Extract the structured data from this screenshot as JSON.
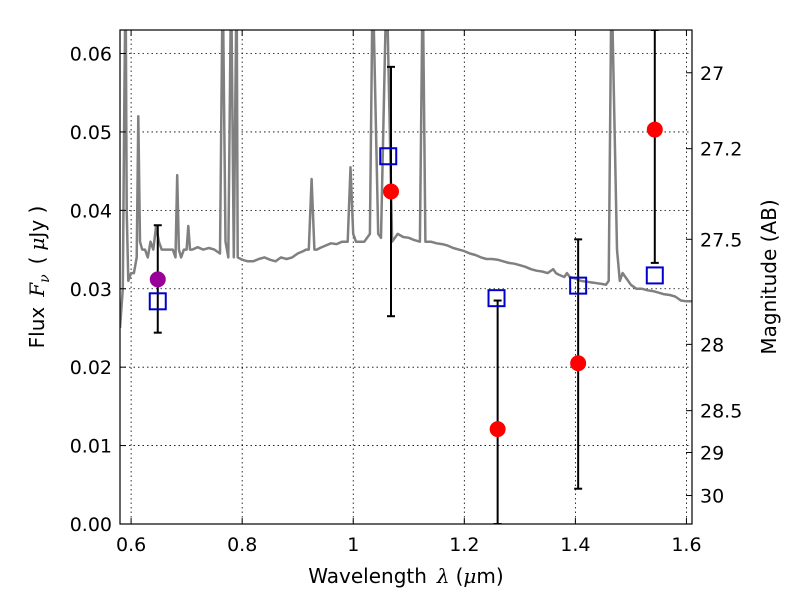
{
  "chart_data": {
    "type": "scatter",
    "xlabel_prefix": "Wavelength",
    "xlabel_symbol": "λ",
    "xlabel_unit_open": "(",
    "xlabel_unit_mu": "μ",
    "xlabel_unit_rest": "m)",
    "ylabel_prefix": "Flux",
    "ylabel_symbol": "F",
    "ylabel_sub": "ν",
    "ylabel_unit_open": "(",
    "ylabel_unit_mu": "μ",
    "ylabel_unit_rest": "Jy )",
    "y2label": "Magnitude (AB)",
    "xlim": [
      0.58,
      1.61
    ],
    "ylim": [
      0.0,
      0.063
    ],
    "grid": true,
    "x_ticks": [
      {
        "v": 0.6,
        "label": "0.6"
      },
      {
        "v": 0.8,
        "label": "0.8"
      },
      {
        "v": 1.0,
        "label": "1"
      },
      {
        "v": 1.2,
        "label": "1.2"
      },
      {
        "v": 1.4,
        "label": "1.4"
      },
      {
        "v": 1.6,
        "label": "1.6"
      }
    ],
    "y_ticks": [
      {
        "v": 0.0,
        "label": "0.00"
      },
      {
        "v": 0.01,
        "label": "0.01"
      },
      {
        "v": 0.02,
        "label": "0.02"
      },
      {
        "v": 0.03,
        "label": "0.03"
      },
      {
        "v": 0.04,
        "label": "0.04"
      },
      {
        "v": 0.05,
        "label": "0.05"
      },
      {
        "v": 0.06,
        "label": "0.06"
      }
    ],
    "mag_ticks": [
      {
        "v": 27,
        "label": "27"
      },
      {
        "v": 27.2,
        "label": "27.2"
      },
      {
        "v": 27.5,
        "label": "27.5"
      },
      {
        "v": 28,
        "label": "28"
      },
      {
        "v": 28.5,
        "label": "28.5"
      },
      {
        "v": 29,
        "label": "29"
      },
      {
        "v": 30,
        "label": "30"
      }
    ],
    "spectrum": {
      "name": "model spectrum",
      "color": "#808080",
      "points": [
        [
          0.58,
          0.025
        ],
        [
          0.585,
          0.03
        ],
        [
          0.588,
          0.055
        ],
        [
          0.59,
          0.07
        ],
        [
          0.592,
          0.04
        ],
        [
          0.595,
          0.031
        ],
        [
          0.6,
          0.032
        ],
        [
          0.605,
          0.032
        ],
        [
          0.61,
          0.034
        ],
        [
          0.613,
          0.052
        ],
        [
          0.616,
          0.036
        ],
        [
          0.62,
          0.035
        ],
        [
          0.625,
          0.035
        ],
        [
          0.63,
          0.034
        ],
        [
          0.635,
          0.036
        ],
        [
          0.64,
          0.035
        ],
        [
          0.645,
          0.038
        ],
        [
          0.65,
          0.036
        ],
        [
          0.655,
          0.035
        ],
        [
          0.66,
          0.035
        ],
        [
          0.665,
          0.035
        ],
        [
          0.67,
          0.035
        ],
        [
          0.675,
          0.035
        ],
        [
          0.68,
          0.034
        ],
        [
          0.683,
          0.0445
        ],
        [
          0.686,
          0.035
        ],
        [
          0.69,
          0.034
        ],
        [
          0.695,
          0.035
        ],
        [
          0.7,
          0.035
        ],
        [
          0.703,
          0.038
        ],
        [
          0.706,
          0.035
        ],
        [
          0.71,
          0.035
        ],
        [
          0.72,
          0.0353
        ],
        [
          0.73,
          0.035
        ],
        [
          0.74,
          0.0352
        ],
        [
          0.75,
          0.035
        ],
        [
          0.76,
          0.0345
        ],
        [
          0.765,
          0.07
        ],
        [
          0.77,
          0.036
        ],
        [
          0.775,
          0.034
        ],
        [
          0.78,
          0.07
        ],
        [
          0.785,
          0.034
        ],
        [
          0.79,
          0.07
        ],
        [
          0.792,
          0.034
        ],
        [
          0.8,
          0.0337
        ],
        [
          0.81,
          0.0335
        ],
        [
          0.82,
          0.0335
        ],
        [
          0.83,
          0.0338
        ],
        [
          0.84,
          0.034
        ],
        [
          0.85,
          0.0337
        ],
        [
          0.86,
          0.0335
        ],
        [
          0.87,
          0.034
        ],
        [
          0.88,
          0.0338
        ],
        [
          0.89,
          0.034
        ],
        [
          0.9,
          0.0345
        ],
        [
          0.91,
          0.0348
        ],
        [
          0.915,
          0.035
        ],
        [
          0.92,
          0.035
        ],
        [
          0.925,
          0.044
        ],
        [
          0.93,
          0.035
        ],
        [
          0.935,
          0.035
        ],
        [
          0.94,
          0.0352
        ],
        [
          0.95,
          0.0355
        ],
        [
          0.96,
          0.0358
        ],
        [
          0.97,
          0.0357
        ],
        [
          0.98,
          0.036
        ],
        [
          0.99,
          0.036
        ],
        [
          0.995,
          0.0455
        ],
        [
          1.0,
          0.037
        ],
        [
          1.005,
          0.036
        ],
        [
          1.01,
          0.036
        ],
        [
          1.02,
          0.036
        ],
        [
          1.03,
          0.037
        ],
        [
          1.035,
          0.07
        ],
        [
          1.045,
          0.037
        ],
        [
          1.05,
          0.0365
        ],
        [
          1.06,
          0.07
        ],
        [
          1.07,
          0.036
        ],
        [
          1.08,
          0.037
        ],
        [
          1.09,
          0.0366
        ],
        [
          1.1,
          0.0365
        ],
        [
          1.11,
          0.0362
        ],
        [
          1.12,
          0.036
        ],
        [
          1.125,
          0.07
        ],
        [
          1.13,
          0.036
        ],
        [
          1.14,
          0.036
        ],
        [
          1.15,
          0.0358
        ],
        [
          1.16,
          0.0357
        ],
        [
          1.17,
          0.0355
        ],
        [
          1.18,
          0.0352
        ],
        [
          1.19,
          0.035
        ],
        [
          1.2,
          0.0348
        ],
        [
          1.21,
          0.0345
        ],
        [
          1.22,
          0.0343
        ],
        [
          1.23,
          0.034
        ],
        [
          1.24,
          0.0338
        ],
        [
          1.25,
          0.0338
        ],
        [
          1.26,
          0.0337
        ],
        [
          1.27,
          0.0335
        ],
        [
          1.28,
          0.0333
        ],
        [
          1.29,
          0.0332
        ],
        [
          1.3,
          0.033
        ],
        [
          1.31,
          0.0328
        ],
        [
          1.32,
          0.0325
        ],
        [
          1.33,
          0.0323
        ],
        [
          1.34,
          0.0322
        ],
        [
          1.35,
          0.032
        ],
        [
          1.36,
          0.0325
        ],
        [
          1.365,
          0.032
        ],
        [
          1.37,
          0.0318
        ],
        [
          1.38,
          0.0315
        ],
        [
          1.385,
          0.032
        ],
        [
          1.39,
          0.0315
        ],
        [
          1.4,
          0.0313
        ],
        [
          1.41,
          0.031
        ],
        [
          1.42,
          0.0309
        ],
        [
          1.43,
          0.0308
        ],
        [
          1.44,
          0.0307
        ],
        [
          1.45,
          0.0306
        ],
        [
          1.455,
          0.0305
        ],
        [
          1.46,
          0.031
        ],
        [
          1.465,
          0.07
        ],
        [
          1.475,
          0.035
        ],
        [
          1.48,
          0.031
        ],
        [
          1.485,
          0.032
        ],
        [
          1.49,
          0.0315
        ],
        [
          1.5,
          0.0305
        ],
        [
          1.51,
          0.03
        ],
        [
          1.52,
          0.03
        ],
        [
          1.53,
          0.0298
        ],
        [
          1.54,
          0.0297
        ],
        [
          1.55,
          0.0295
        ],
        [
          1.56,
          0.0293
        ],
        [
          1.57,
          0.0292
        ],
        [
          1.58,
          0.029
        ],
        [
          1.59,
          0.0285
        ],
        [
          1.6,
          0.0284
        ],
        [
          1.61,
          0.0284
        ]
      ]
    },
    "observed": [
      {
        "x": 0.648,
        "y": 0.0312,
        "yerr_low": 0.0244,
        "yerr_high": 0.0381,
        "color": "#990099"
      },
      {
        "x": 1.068,
        "y": 0.0424,
        "yerr_low": 0.0265,
        "yerr_high": 0.0583,
        "color": "#ff0000"
      },
      {
        "x": 1.26,
        "y": 0.0121,
        "yerr_low": 0.0,
        "yerr_high": 0.0285,
        "color": "#ff0000"
      },
      {
        "x": 1.405,
        "y": 0.0205,
        "yerr_low": 0.0045,
        "yerr_high": 0.0363,
        "color": "#ff0000"
      },
      {
        "x": 1.543,
        "y": 0.0503,
        "yerr_low": 0.0333,
        "yerr_high": 0.063,
        "color": "#ff0000"
      }
    ],
    "model_photometry": {
      "color": "#0000cc",
      "points": [
        {
          "x": 0.648,
          "y": 0.0284
        },
        {
          "x": 1.063,
          "y": 0.0469
        },
        {
          "x": 1.258,
          "y": 0.0288
        },
        {
          "x": 1.405,
          "y": 0.0304
        },
        {
          "x": 1.543,
          "y": 0.0317
        }
      ]
    }
  }
}
